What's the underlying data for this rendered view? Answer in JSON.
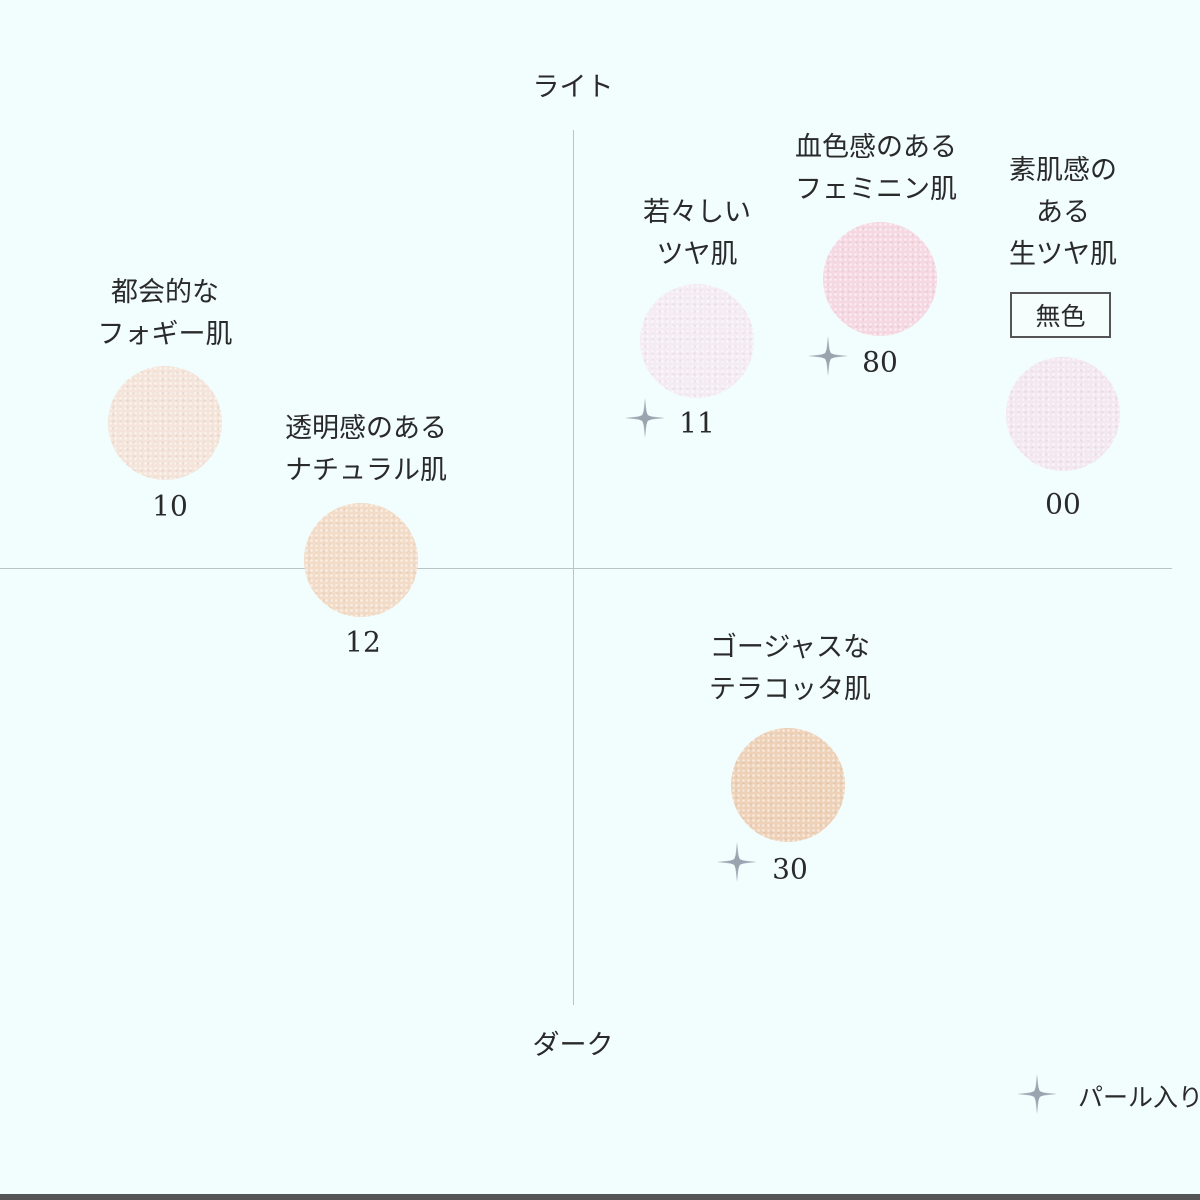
{
  "axes": {
    "top": "ライト",
    "bottom": "ダーク"
  },
  "items": [
    {
      "label": [
        "都会的な",
        "フォギー肌"
      ],
      "shade": "10",
      "pearl": false,
      "color": "#f4e4d9"
    },
    {
      "label": [
        "透明感のある",
        "ナチュラル肌"
      ],
      "shade": "12",
      "pearl": false,
      "color": "#f3dcc7"
    },
    {
      "label": [
        "若々しい",
        "ツヤ肌"
      ],
      "shade": "11",
      "pearl": true,
      "color": "#f5ecf3"
    },
    {
      "label": [
        "血色感のある",
        "フェミニン肌"
      ],
      "shade": "80",
      "pearl": true,
      "color": "#f6d8e2"
    },
    {
      "label": [
        "素肌感の",
        "ある",
        "生ツヤ肌"
      ],
      "shade": "00",
      "pearl": false,
      "color": "#f3e7f0",
      "badge": "無色"
    },
    {
      "label": [
        "ゴージャスな",
        "テラコッタ肌"
      ],
      "shade": "30",
      "pearl": true,
      "color": "#eed1b7"
    }
  ],
  "legend": {
    "icon": "sparkle-icon",
    "text": "パール入り"
  }
}
